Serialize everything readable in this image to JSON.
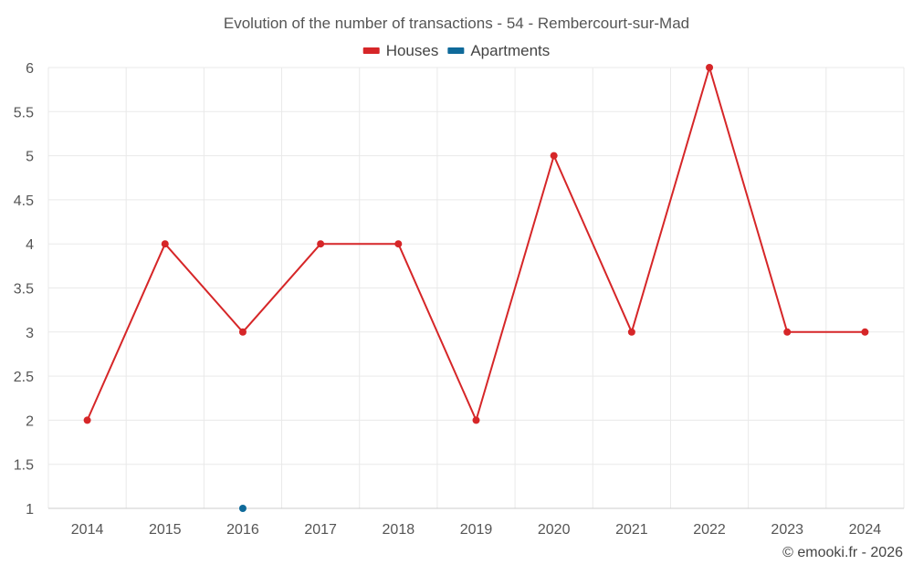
{
  "chart_data": {
    "type": "line",
    "title": "Evolution of the number of transactions - 54 - Rembercourt-sur-Mad",
    "categories": [
      "2014",
      "2015",
      "2016",
      "2017",
      "2018",
      "2019",
      "2020",
      "2021",
      "2022",
      "2023",
      "2024"
    ],
    "y_ticks": [
      "1",
      "1.5",
      "2",
      "2.5",
      "3",
      "3.5",
      "4",
      "4.5",
      "5",
      "5.5",
      "6"
    ],
    "ylim": [
      1,
      6
    ],
    "xlabel": "",
    "ylabel": "",
    "grid": true,
    "legend_position": "top-center",
    "series": [
      {
        "name": "Houses",
        "color": "#d62628",
        "values": [
          2,
          4,
          3,
          4,
          4,
          2,
          5,
          3,
          6,
          3,
          3
        ]
      },
      {
        "name": "Apartments",
        "color": "#0f6a9a",
        "values": [
          null,
          null,
          1,
          null,
          null,
          null,
          null,
          null,
          null,
          null,
          null
        ]
      }
    ]
  },
  "credit": "© emooki.fr - 2026"
}
